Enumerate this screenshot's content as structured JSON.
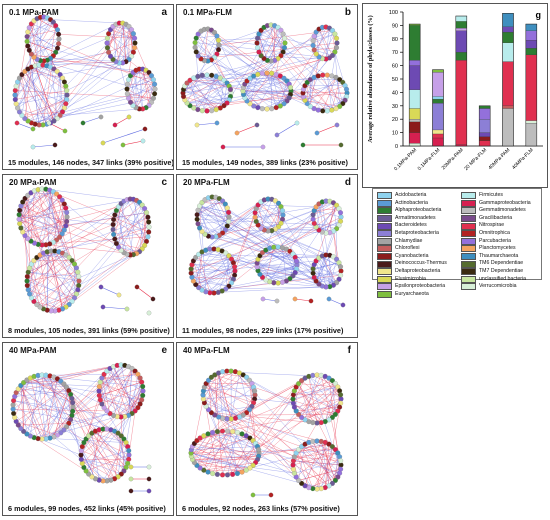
{
  "panels": [
    {
      "id": "a",
      "title": "0.1 MPa-PAM",
      "caption": "15 modules, 146 nodes, 347 links (39% positive)"
    },
    {
      "id": "b",
      "title": "0.1 MPa-FLM",
      "caption": "15 modules, 149 nodes, 389 links (23% positive)"
    },
    {
      "id": "c",
      "title": "20 MPa-PAM",
      "caption": "8 modules, 105 nodes, 391 links (59% positive)"
    },
    {
      "id": "d",
      "title": "20 MPa-FLM",
      "caption": "11 modules, 98 nodes, 229 links (17% positive)"
    },
    {
      "id": "e",
      "title": "40 MPa-PAM",
      "caption": "6 modules, 99 nodes, 452 links (45% positive)"
    },
    {
      "id": "f",
      "title": "40 MPa-FLM",
      "caption": "6 modules, 92 nodes, 263 links (57% positive)"
    }
  ],
  "legend": [
    {
      "name": "Acidobacteria",
      "color": "#8fd3ef"
    },
    {
      "name": "Actinobacteria",
      "color": "#5b9bd5"
    },
    {
      "name": "Alphaproteobacteria",
      "color": "#2e7d32"
    },
    {
      "name": "Armatimonadetes",
      "color": "#6b5b95"
    },
    {
      "name": "Bacteroidetes",
      "color": "#6d4ab3"
    },
    {
      "name": "Betaproteobacteria",
      "color": "#8c7fd6"
    },
    {
      "name": "Chlamydiae",
      "color": "#a3a3a3"
    },
    {
      "name": "Chloroflexi",
      "color": "#c45d5d"
    },
    {
      "name": "Cyanobacteria",
      "color": "#8b1c1c"
    },
    {
      "name": "Deinococcus-Thermus",
      "color": "#4a1a1a"
    },
    {
      "name": "Deltaproteobacteria",
      "color": "#f0e68c"
    },
    {
      "name": "Elusimicrobia",
      "color": "#d9d957"
    },
    {
      "name": "Epsilonproteobacteria",
      "color": "#c6a0e8"
    },
    {
      "name": "Euryarchaeota",
      "color": "#7fbf3f"
    },
    {
      "name": "Firmicutes",
      "color": "#b8ecec"
    },
    {
      "name": "Gammaproteobacteria",
      "color": "#d62050"
    },
    {
      "name": "Gemmatimonadetes",
      "color": "#bdbdbd"
    },
    {
      "name": "Gracilibacteria",
      "color": "#7a4b8c"
    },
    {
      "name": "Nitrospirae",
      "color": "#e03050"
    },
    {
      "name": "Omnitrophica",
      "color": "#b22222"
    },
    {
      "name": "Parcubacteria",
      "color": "#9370db"
    },
    {
      "name": "Planctomycetes",
      "color": "#f4a460"
    },
    {
      "name": "Thaumarchaeota",
      "color": "#3f8fbf"
    },
    {
      "name": "TM6 Dependentiae",
      "color": "#556b2f"
    },
    {
      "name": "TM7 Dependentiae",
      "color": "#3a2a10"
    },
    {
      "name": "unclassified bacteria",
      "color": "#c8e6a0"
    },
    {
      "name": "Verrucomicrobia",
      "color": "#d8f0d8"
    }
  ],
  "chart_data": {
    "type": "bar",
    "stacked": true,
    "panel_letter": "g",
    "ylabel": "Average relative abundance of phyla/classes (%)",
    "ylim": [
      0,
      100
    ],
    "yticks": [
      0,
      10,
      20,
      30,
      40,
      50,
      60,
      70,
      80,
      90,
      100
    ],
    "categories": [
      "0.1MPa-PAM",
      "0.1MPa-FLM",
      "20MPa-PAM",
      "20 MPa-FLM",
      "40MPa-PAM",
      "40MPa-FLM"
    ],
    "totals": [
      91,
      57,
      97,
      30,
      99,
      91
    ],
    "segments": [
      [
        [
          "Verrucomicrobia",
          2
        ],
        [
          "Gammaproteobacteria",
          8
        ],
        [
          "Cyanobacteria",
          8
        ],
        [
          "Gemmatimonadetes",
          2
        ],
        [
          "Elusimicrobia",
          8
        ],
        [
          "Firmicutes",
          14
        ],
        [
          "Bacteroidetes",
          18
        ],
        [
          "Parcubacteria",
          4
        ],
        [
          "Alphaproteobacteria",
          26
        ],
        [
          "Euryarchaeota",
          1
        ]
      ],
      [
        [
          "Gammaproteobacteria",
          6
        ],
        [
          "Nitrospirae",
          3
        ],
        [
          "Deltaproteobacteria",
          3
        ],
        [
          "Betaproteobacteria",
          20
        ],
        [
          "Alphaproteobacteria",
          3
        ],
        [
          "Acidobacteria",
          2
        ],
        [
          "Epsilonproteobacteria",
          18
        ],
        [
          "Euryarchaeota",
          2
        ]
      ],
      [
        [
          "Gammaproteobacteria",
          1
        ],
        [
          "Nitrospirae",
          63
        ],
        [
          "Alphaproteobacteria",
          6
        ],
        [
          "Bacteroidetes",
          16
        ],
        [
          "Epsilonproteobacteria",
          2
        ],
        [
          "Alphaproteobacteria",
          5
        ],
        [
          "Firmicutes",
          4
        ]
      ],
      [
        [
          "Nitrospirae",
          4
        ],
        [
          "Cyanobacteria",
          3
        ],
        [
          "Bacteroidetes",
          3
        ],
        [
          "Betaproteobacteria",
          10
        ],
        [
          "Parcubacteria",
          8
        ],
        [
          "Alphaproteobacteria",
          2
        ]
      ],
      [
        [
          "Gemmatimonadetes",
          28
        ],
        [
          "Chloroflexi",
          2
        ],
        [
          "Nitrospirae",
          33
        ],
        [
          "Firmicutes",
          14
        ],
        [
          "Alphaproteobacteria",
          8
        ],
        [
          "Bacteroidetes",
          4
        ],
        [
          "Thaumarchaeota",
          10
        ]
      ],
      [
        [
          "Gemmatimonadetes",
          17
        ],
        [
          "Verrucomicrobia",
          2
        ],
        [
          "Nitrospirae",
          49
        ],
        [
          "Alphaproteobacteria",
          5
        ],
        [
          "Bacteroidetes",
          6
        ],
        [
          "Parcubacteria",
          7
        ],
        [
          "Thaumarchaeota",
          5
        ]
      ]
    ]
  }
}
